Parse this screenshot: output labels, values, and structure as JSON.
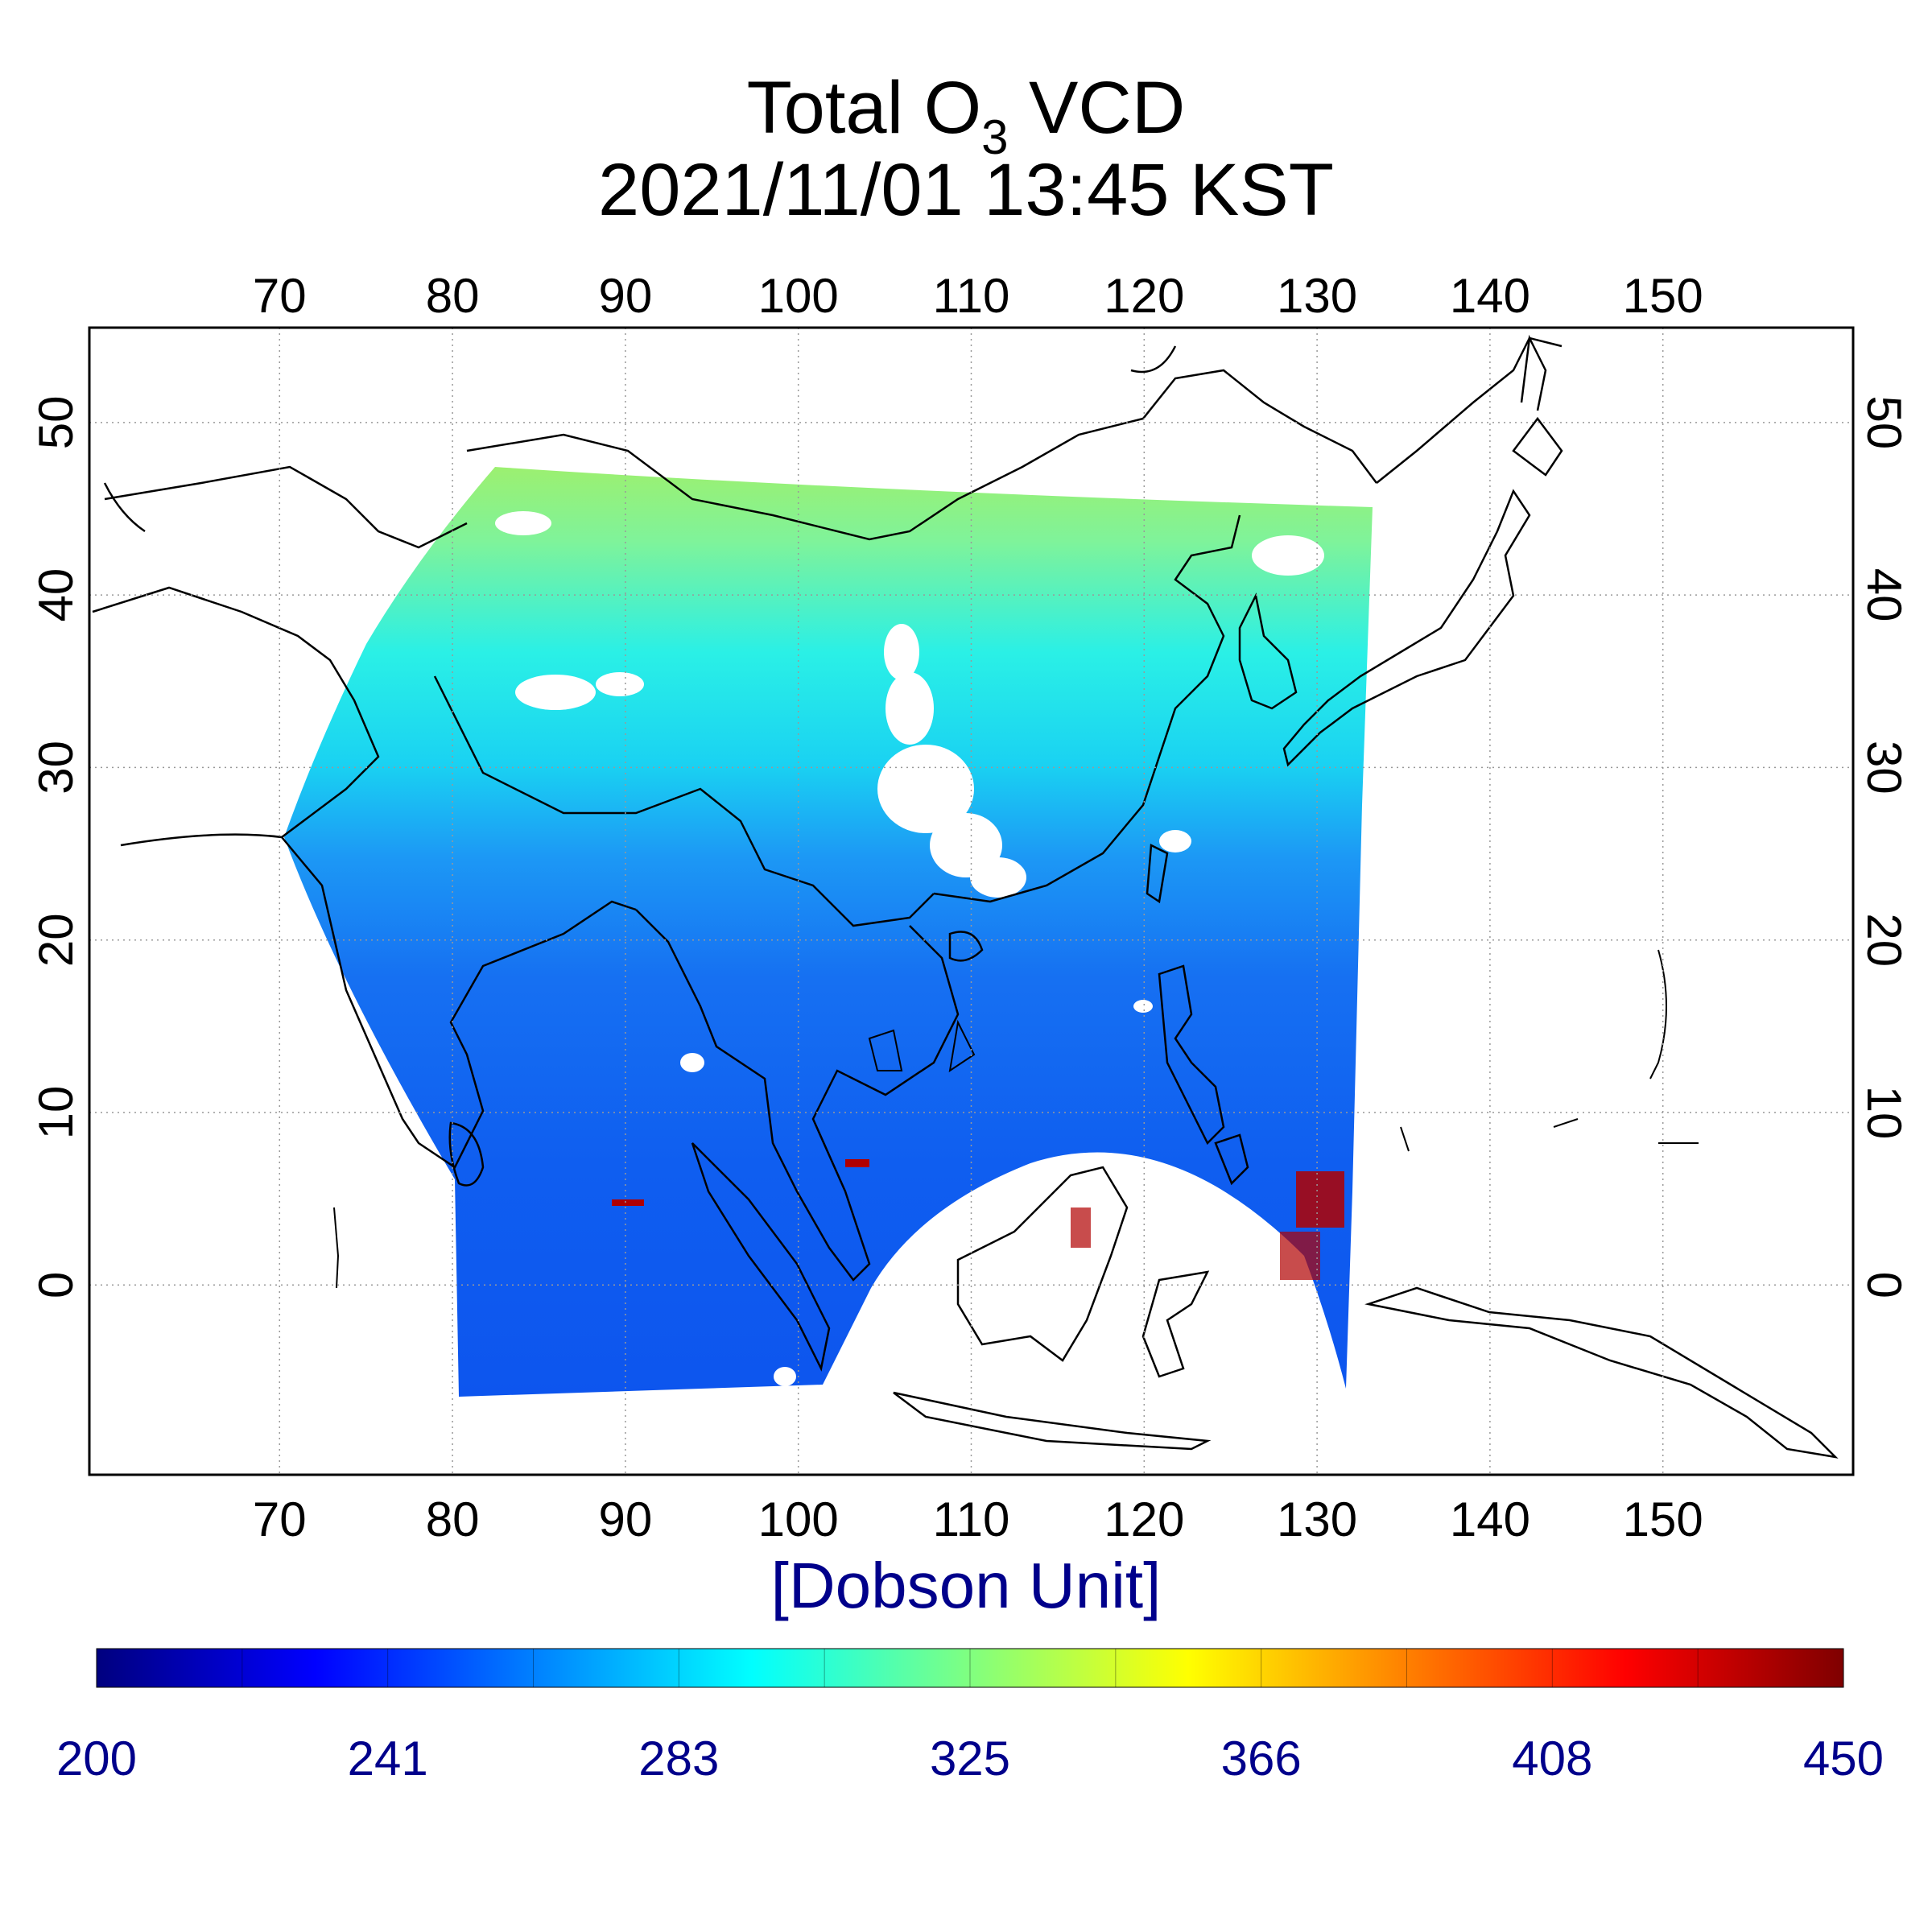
{
  "title": {
    "prefix": "Total O",
    "subscript": "3",
    "suffix": " VCD",
    "datetime": "2021/11/01 13:45 KST"
  },
  "axes": {
    "lon_ticks": [
      "70",
      "80",
      "90",
      "100",
      "110",
      "120",
      "130",
      "140",
      "150"
    ],
    "lon_values": [
      70,
      80,
      90,
      100,
      110,
      120,
      130,
      140,
      150
    ],
    "lat_ticks": [
      "0",
      "10",
      "20",
      "30",
      "40",
      "50"
    ],
    "lat_values": [
      0,
      10,
      20,
      30,
      40,
      50
    ],
    "lon_range": [
      59,
      161
    ],
    "lat_range": [
      -11,
      55.5
    ],
    "grid": true,
    "grid_style": "dotted"
  },
  "colorbar": {
    "unit_label": "[Dobson Unit]",
    "min": 200,
    "max": 450,
    "tick_labels": [
      "200",
      "241",
      "283",
      "325",
      "366",
      "408",
      "450"
    ],
    "colors": [
      "#00007f",
      "#0000ff",
      "#0080ff",
      "#00ffff",
      "#80ff80",
      "#ffff00",
      "#ff8000",
      "#ff0000",
      "#7f0000"
    ]
  },
  "colors": {
    "frame": "#000000",
    "coastline": "#000000",
    "unit_text": "#00008b",
    "background": "#ffffff"
  }
}
